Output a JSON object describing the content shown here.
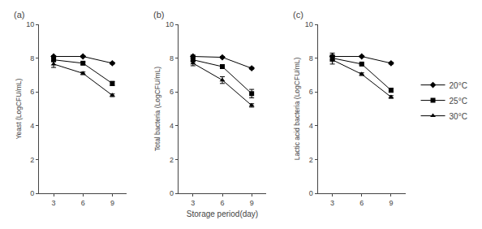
{
  "chart_data": [
    {
      "type": "line",
      "title": "(a)",
      "ylabel": "Yeast (LogCFU/mL)",
      "x": [
        3,
        6,
        9
      ],
      "xlim": [
        1.5,
        10.5
      ],
      "xticks": [
        3,
        6,
        9
      ],
      "ylim": [
        0,
        10
      ],
      "yticks": [
        0,
        2,
        4,
        6,
        8,
        10
      ],
      "grid": false,
      "color": "black",
      "series": [
        {
          "name": "20°C",
          "marker": "diamond",
          "values": [
            8.1,
            8.1,
            7.7
          ],
          "yerr": [
            0.05,
            0.05,
            0.05
          ]
        },
        {
          "name": "25°C",
          "marker": "square",
          "values": [
            7.9,
            7.7,
            6.5
          ],
          "yerr": [
            0.08,
            0.08,
            0.12
          ]
        },
        {
          "name": "30°C",
          "marker": "triangle-up",
          "values": [
            7.65,
            7.1,
            5.8
          ],
          "yerr": [
            0.2,
            0.08,
            0.08
          ]
        }
      ]
    },
    {
      "type": "line",
      "title": "(b)",
      "ylabel": "Total bacteria (LogCFU/mL)",
      "xlabel": "Storage period(day)",
      "x": [
        3,
        6,
        9
      ],
      "xlim": [
        1.5,
        10.5
      ],
      "xticks": [
        3,
        6,
        9
      ],
      "ylim": [
        0,
        10
      ],
      "yticks": [
        0,
        2,
        4,
        6,
        8,
        10
      ],
      "grid": false,
      "color": "black",
      "series": [
        {
          "name": "20°C",
          "marker": "diamond",
          "values": [
            8.1,
            8.05,
            7.4
          ],
          "yerr": [
            0.08,
            0.05,
            0.05
          ]
        },
        {
          "name": "25°C",
          "marker": "square",
          "values": [
            7.9,
            7.5,
            5.9
          ],
          "yerr": [
            0.1,
            0.12,
            0.25
          ]
        },
        {
          "name": "30°C",
          "marker": "triangle-up",
          "values": [
            7.7,
            6.7,
            5.2
          ],
          "yerr": [
            0.15,
            0.2,
            0.1
          ]
        }
      ]
    },
    {
      "type": "line",
      "title": "(c)",
      "ylabel": "Lactic acid bacteria (LogCFU/mL)",
      "x": [
        3,
        6,
        9
      ],
      "xlim": [
        1.5,
        10.5
      ],
      "xticks": [
        3,
        6,
        9
      ],
      "ylim": [
        0,
        10
      ],
      "yticks": [
        0,
        2,
        4,
        6,
        8,
        10
      ],
      "grid": false,
      "color": "black",
      "legend": "right",
      "series": [
        {
          "name": "20°C",
          "marker": "diamond",
          "values": [
            8.1,
            8.1,
            7.7
          ],
          "yerr": [
            0.2,
            0.05,
            0.05
          ]
        },
        {
          "name": "25°C",
          "marker": "square",
          "values": [
            8.0,
            7.65,
            6.1
          ],
          "yerr": [
            0.2,
            0.05,
            0.12
          ]
        },
        {
          "name": "30°C",
          "marker": "triangle-up",
          "values": [
            7.9,
            7.05,
            5.7
          ],
          "yerr": [
            0.25,
            0.08,
            0.08
          ]
        }
      ]
    }
  ]
}
